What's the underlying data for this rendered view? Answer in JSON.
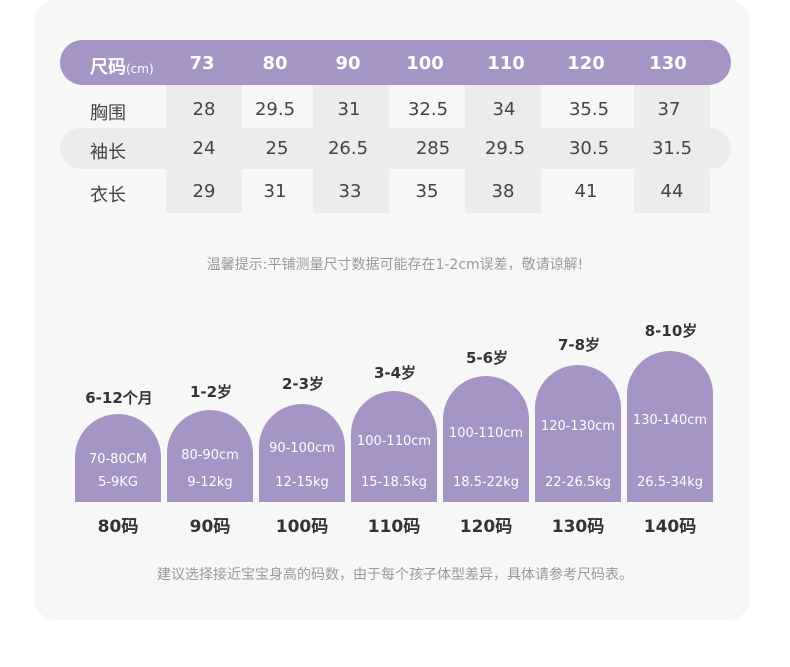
{
  "table": {
    "header_label": "尺码",
    "header_unit": "(cm)",
    "sizes": [
      "73",
      "80",
      "90",
      "100",
      "110",
      "120",
      "130"
    ],
    "rows": [
      {
        "label": "胸围",
        "values": [
          "28",
          "29.5",
          "31",
          "32.5",
          "34",
          "35.5",
          "37"
        ]
      },
      {
        "label": "袖长",
        "values": [
          "24",
          "25",
          "26.5",
          "285",
          "29.5",
          "30.5",
          "31.5"
        ]
      },
      {
        "label": "衣长",
        "values": [
          "29",
          "31",
          "33",
          "35",
          "38",
          "41",
          "44"
        ]
      }
    ],
    "colors": {
      "header": "#a595c4",
      "shade": "#ececec"
    }
  },
  "tip_text": "温馨提示:平铺测量尺寸数据可能存在1-2cm误差，敬请谅解!",
  "age_guide": [
    {
      "age": "6-12个月",
      "height": "70-80CM",
      "weight": "5-9KG",
      "size": "80码"
    },
    {
      "age": "1-2岁",
      "height": "80-90cm",
      "weight": "9-12kg",
      "size": "90码"
    },
    {
      "age": "2-3岁",
      "height": "90-100cm",
      "weight": "12-15kg",
      "size": "100码"
    },
    {
      "age": "3-4岁",
      "height": "100-110cm",
      "weight": "15-18.5kg",
      "size": "110码"
    },
    {
      "age": "5-6岁",
      "height": "100-110cm",
      "weight": "18.5-22kg",
      "size": "120码"
    },
    {
      "age": "7-8岁",
      "height": "120-130cm",
      "weight": "22-26.5kg",
      "size": "130码"
    },
    {
      "age": "8-10岁",
      "height": "130-140cm",
      "weight": "26.5-34kg",
      "size": "140码"
    }
  ],
  "bottom_note": "建议选择接近宝宝身高的码数，由于每个孩子体型差异，具体请参考尺码表。"
}
